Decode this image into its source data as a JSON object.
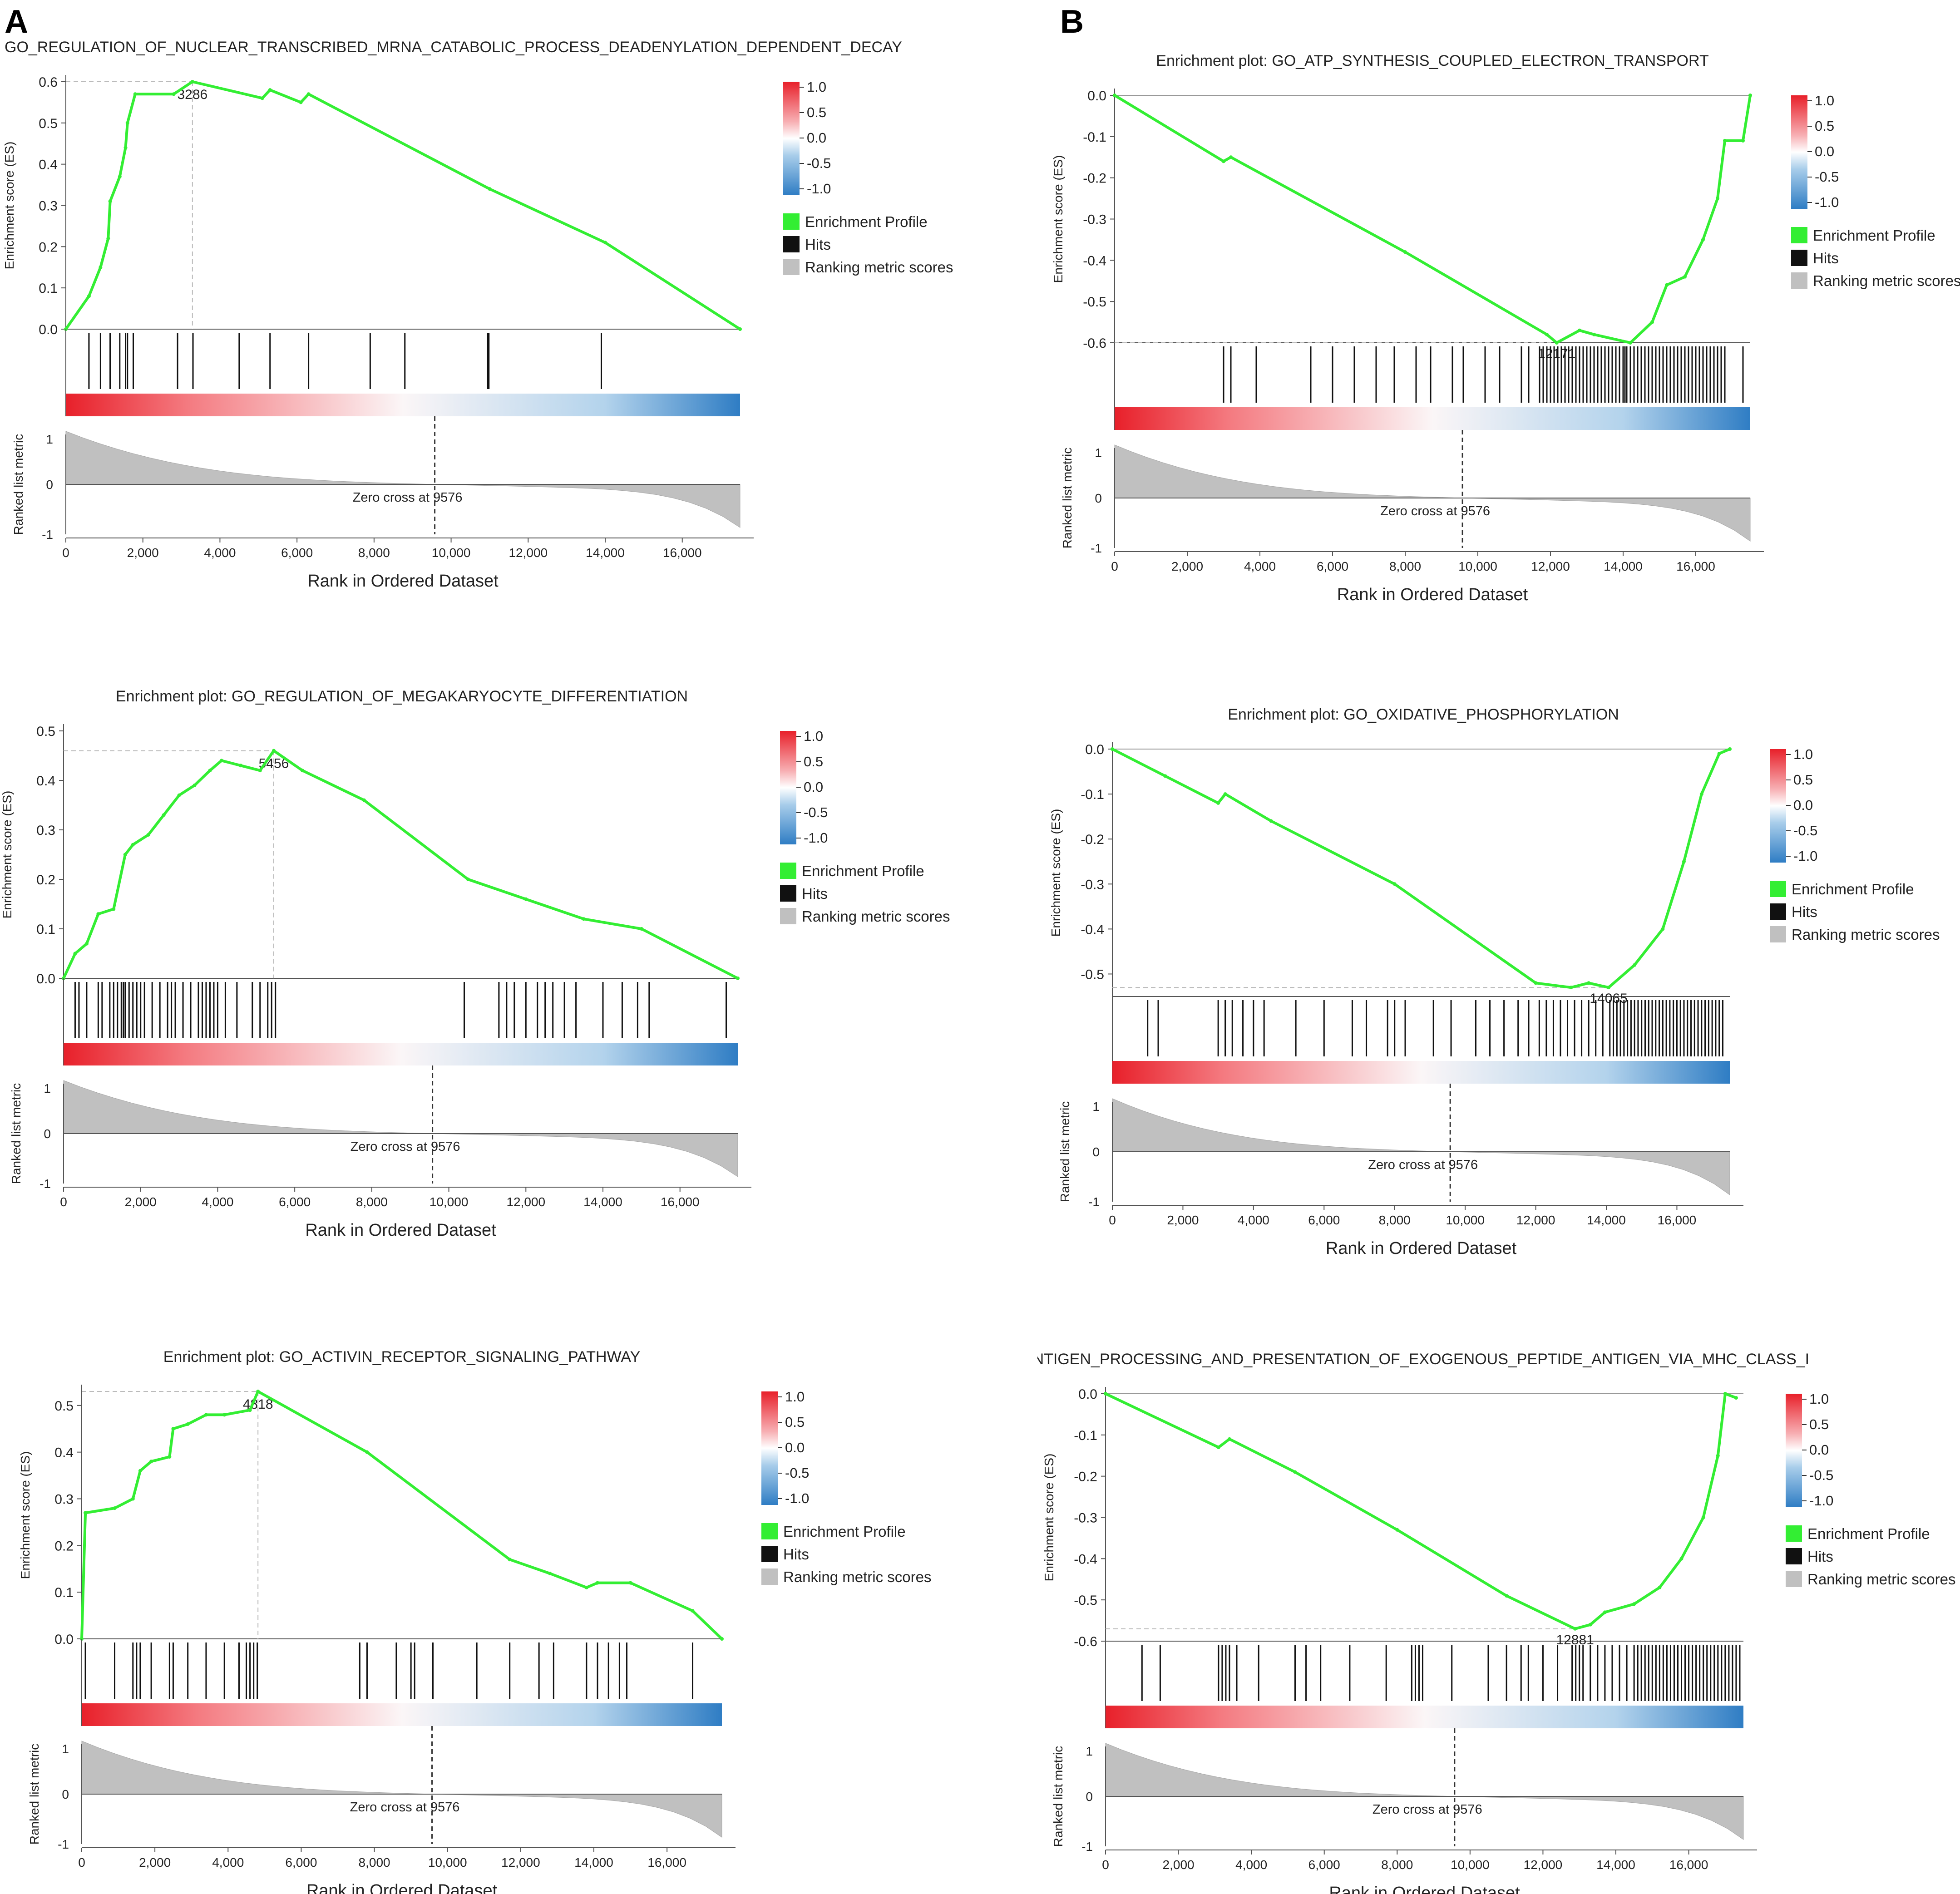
{
  "panel_labels": [
    "A",
    "B"
  ],
  "legend": {
    "items": [
      "Enrichment Profile",
      "Hits",
      "Ranking metric scores"
    ],
    "colorbar_ticks": [
      "1.0",
      "0.5",
      "0.0",
      "-0.5",
      "-1.0"
    ]
  },
  "colors": {
    "profile": "#33ee33",
    "hits": "#111111",
    "metric": "#c0c0c0",
    "positive": "#e8202a",
    "negative": "#2f7dc4",
    "axis": "#555555"
  },
  "chart_data": [
    {
      "type": "line",
      "panel": "A",
      "title": "GO_REGULATION_OF_NUCLEAR_TRANSCRIBED_MRNA_CATABOLIC_PROCESS_DEADENYLATION_DEPENDENT_DECAY",
      "ylabel": "Enrichment score (ES)",
      "xlabel": "Rank in Ordered Dataset",
      "metric_ylabel": "Ranked list metric",
      "zero_cross_label": "Zero cross at 9576",
      "zero_cross": 9576,
      "n_genes": 17500,
      "ylim": [
        0,
        0.6
      ],
      "yticks": [
        "0.0",
        "0.1",
        "0.2",
        "0.3",
        "0.4",
        "0.5",
        "0.6"
      ],
      "xticks": [
        "0",
        "2,000",
        "4,000",
        "6,000",
        "8,000",
        "10,000",
        "12,000",
        "14,000",
        "16,000"
      ],
      "metric_yticks": [
        "1",
        "0",
        "-1"
      ],
      "peak_label": "3286",
      "peak_rank": 3286,
      "peak_es": 0.6,
      "profile": [
        [
          0,
          0
        ],
        [
          600,
          0.08
        ],
        [
          900,
          0.15
        ],
        [
          1100,
          0.22
        ],
        [
          1150,
          0.31
        ],
        [
          1400,
          0.37
        ],
        [
          1550,
          0.44
        ],
        [
          1600,
          0.5
        ],
        [
          1800,
          0.57
        ],
        [
          2800,
          0.57
        ],
        [
          3286,
          0.6
        ],
        [
          5100,
          0.56
        ],
        [
          5300,
          0.58
        ],
        [
          6100,
          0.55
        ],
        [
          6300,
          0.57
        ],
        [
          11000,
          0.34
        ],
        [
          14000,
          0.21
        ],
        [
          17500,
          0
        ]
      ],
      "hits": [
        600,
        900,
        1150,
        1400,
        1550,
        1600,
        1750,
        2900,
        3300,
        4500,
        5300,
        6300,
        7900,
        8800,
        10950,
        10960,
        10980,
        13900
      ]
    },
    {
      "type": "line",
      "panel": "B",
      "title": "Enrichment plot: GO_ATP_SYNTHESIS_COUPLED_ELECTRON_TRANSPORT",
      "ylabel": "Enrichment score (ES)",
      "xlabel": "Rank in Ordered Dataset",
      "metric_ylabel": "Ranked list metric",
      "zero_cross_label": "Zero cross at 9576",
      "zero_cross": 9576,
      "n_genes": 17500,
      "ylim": [
        -0.6,
        0
      ],
      "yticks": [
        "0.0",
        "-0.1",
        "-0.2",
        "-0.3",
        "-0.4",
        "-0.5",
        "-0.6"
      ],
      "xticks": [
        "0",
        "2,000",
        "4,000",
        "6,000",
        "8,000",
        "10,000",
        "12,000",
        "14,000",
        "16,000"
      ],
      "metric_yticks": [
        "1",
        "0",
        "-1"
      ],
      "peak_label": "12171",
      "peak_rank": 12171,
      "peak_es": -0.6,
      "profile": [
        [
          0,
          0
        ],
        [
          3000,
          -0.16
        ],
        [
          3200,
          -0.15
        ],
        [
          8000,
          -0.38
        ],
        [
          11900,
          -0.58
        ],
        [
          12171,
          -0.6
        ],
        [
          12800,
          -0.57
        ],
        [
          13200,
          -0.58
        ],
        [
          14200,
          -0.6
        ],
        [
          14800,
          -0.55
        ],
        [
          15200,
          -0.46
        ],
        [
          15700,
          -0.44
        ],
        [
          16200,
          -0.35
        ],
        [
          16600,
          -0.25
        ],
        [
          16800,
          -0.11
        ],
        [
          17300,
          -0.11
        ],
        [
          17500,
          0
        ]
      ],
      "hits": [
        3000,
        3200,
        3900,
        5400,
        6000,
        6600,
        7200,
        7700,
        8300,
        8700,
        9300,
        9600,
        10200,
        10600,
        11200,
        11400,
        11700,
        11800,
        11900,
        12000,
        12100,
        12200,
        12300,
        12400,
        12500,
        12600,
        12700,
        12800,
        12900,
        13000,
        13100,
        13200,
        13300,
        13400,
        13500,
        13600,
        13700,
        13800,
        13900,
        14000,
        14050,
        14100,
        14200,
        14300,
        14400,
        14500,
        14600,
        14700,
        14800,
        14900,
        15000,
        15100,
        15200,
        15300,
        15400,
        15500,
        15600,
        15700,
        15800,
        15900,
        16000,
        16100,
        16200,
        16300,
        16400,
        16500,
        16600,
        16700,
        16800,
        17300
      ]
    },
    {
      "type": "line",
      "panel": "A",
      "title": "Enrichment plot: GO_REGULATION_OF_MEGAKARYOCYTE_DIFFERENTIATION",
      "ylabel": "Enrichment score (ES)",
      "xlabel": "Rank in Ordered Dataset",
      "metric_ylabel": "Ranked list metric",
      "zero_cross_label": "Zero cross at 9576",
      "zero_cross": 9576,
      "n_genes": 17500,
      "ylim": [
        0,
        0.5
      ],
      "yticks": [
        "0.0",
        "0.1",
        "0.2",
        "0.3",
        "0.4",
        "0.5"
      ],
      "xticks": [
        "0",
        "2,000",
        "4,000",
        "6,000",
        "8,000",
        "10,000",
        "12,000",
        "14,000",
        "16,000"
      ],
      "metric_yticks": [
        "1",
        "0",
        "-1"
      ],
      "peak_label": "5456",
      "peak_rank": 5456,
      "peak_es": 0.46,
      "profile": [
        [
          0,
          0
        ],
        [
          300,
          0.05
        ],
        [
          600,
          0.07
        ],
        [
          900,
          0.13
        ],
        [
          1300,
          0.14
        ],
        [
          1600,
          0.25
        ],
        [
          1800,
          0.27
        ],
        [
          2200,
          0.29
        ],
        [
          2600,
          0.33
        ],
        [
          3000,
          0.37
        ],
        [
          3400,
          0.39
        ],
        [
          3800,
          0.42
        ],
        [
          4100,
          0.44
        ],
        [
          4600,
          0.43
        ],
        [
          5100,
          0.42
        ],
        [
          5456,
          0.46
        ],
        [
          6200,
          0.42
        ],
        [
          7800,
          0.36
        ],
        [
          10500,
          0.2
        ],
        [
          12000,
          0.16
        ],
        [
          13500,
          0.12
        ],
        [
          15000,
          0.1
        ],
        [
          17500,
          0
        ]
      ],
      "hits": [
        300,
        400,
        600,
        900,
        1000,
        1200,
        1300,
        1400,
        1500,
        1550,
        1600,
        1700,
        1800,
        1900,
        2000,
        2100,
        2300,
        2500,
        2700,
        2800,
        2900,
        3100,
        3300,
        3500,
        3600,
        3700,
        3800,
        3900,
        4000,
        4200,
        4500,
        4900,
        5100,
        5300,
        5400,
        5500,
        10400,
        11300,
        11500,
        11700,
        12000,
        12300,
        12500,
        12700,
        13000,
        13300,
        14000,
        14500,
        14900,
        15200,
        17200
      ]
    },
    {
      "type": "line",
      "panel": "B",
      "title": "Enrichment plot: GO_OXIDATIVE_PHOSPHORYLATION",
      "ylabel": "Enrichment score (ES)",
      "xlabel": "Rank in Ordered Dataset",
      "metric_ylabel": "Ranked list metric",
      "zero_cross_label": "Zero cross at 9576",
      "zero_cross": 9576,
      "n_genes": 17500,
      "ylim": [
        -0.55,
        0
      ],
      "yticks": [
        "0.0",
        "-0.1",
        "-0.2",
        "-0.3",
        "-0.4",
        "-0.5"
      ],
      "xticks": [
        "0",
        "2,000",
        "4,000",
        "6,000",
        "8,000",
        "10,000",
        "12,000",
        "14,000",
        "16,000"
      ],
      "metric_yticks": [
        "1",
        "0",
        "-1"
      ],
      "peak_label": "14065",
      "peak_rank": 14065,
      "peak_es": -0.53,
      "profile": [
        [
          0,
          0
        ],
        [
          1500,
          -0.06
        ],
        [
          3000,
          -0.12
        ],
        [
          3200,
          -0.1
        ],
        [
          4500,
          -0.16
        ],
        [
          8000,
          -0.3
        ],
        [
          12000,
          -0.52
        ],
        [
          13000,
          -0.53
        ],
        [
          13500,
          -0.52
        ],
        [
          14065,
          -0.53
        ],
        [
          14800,
          -0.48
        ],
        [
          15600,
          -0.4
        ],
        [
          16200,
          -0.25
        ],
        [
          16700,
          -0.1
        ],
        [
          17200,
          -0.01
        ],
        [
          17500,
          0
        ]
      ],
      "hits": [
        1000,
        1300,
        3000,
        3200,
        3400,
        3700,
        4000,
        4300,
        5200,
        6000,
        6800,
        7200,
        7800,
        8000,
        8300,
        9100,
        9600,
        10300,
        10700,
        11100,
        11500,
        11800,
        12100,
        12300,
        12500,
        12700,
        12900,
        13100,
        13300,
        13500,
        13700,
        13900,
        14100,
        14200,
        14300,
        14400,
        14500,
        14600,
        14700,
        14800,
        14900,
        15000,
        15100,
        15200,
        15300,
        15400,
        15500,
        15600,
        15700,
        15800,
        15900,
        16000,
        16100,
        16200,
        16300,
        16400,
        16500,
        16600,
        16700,
        16800,
        16900,
        17000,
        17100,
        17200,
        17300
      ]
    },
    {
      "type": "line",
      "panel": "A",
      "title": "Enrichment plot: GO_ACTIVIN_RECEPTOR_SIGNALING_PATHWAY",
      "ylabel": "Enrichment score (ES)",
      "xlabel": "Rank in Ordered Dataset",
      "metric_ylabel": "Ranked list metric",
      "zero_cross_label": "Zero cross at 9576",
      "zero_cross": 9576,
      "n_genes": 17500,
      "ylim": [
        0,
        0.53
      ],
      "yticks": [
        "0.0",
        "0.1",
        "0.2",
        "0.3",
        "0.4",
        "0.5"
      ],
      "xticks": [
        "0",
        "2,000",
        "4,000",
        "6,000",
        "8,000",
        "10,000",
        "12,000",
        "14,000",
        "16,000"
      ],
      "metric_yticks": [
        "1",
        "0",
        "-1"
      ],
      "peak_label": "4818",
      "peak_rank": 4818,
      "peak_es": 0.53,
      "profile": [
        [
          0,
          0
        ],
        [
          100,
          0.27
        ],
        [
          900,
          0.28
        ],
        [
          1400,
          0.3
        ],
        [
          1600,
          0.36
        ],
        [
          1900,
          0.38
        ],
        [
          2400,
          0.39
        ],
        [
          2500,
          0.45
        ],
        [
          2900,
          0.46
        ],
        [
          3400,
          0.48
        ],
        [
          3900,
          0.48
        ],
        [
          4600,
          0.49
        ],
        [
          4818,
          0.53
        ],
        [
          7800,
          0.4
        ],
        [
          11700,
          0.17
        ],
        [
          12800,
          0.14
        ],
        [
          13800,
          0.11
        ],
        [
          14100,
          0.12
        ],
        [
          15000,
          0.12
        ],
        [
          16700,
          0.06
        ],
        [
          17500,
          0
        ]
      ],
      "hits": [
        100,
        900,
        1400,
        1500,
        1600,
        1900,
        2400,
        2500,
        2900,
        3400,
        3900,
        4300,
        4500,
        4600,
        4700,
        4800,
        7600,
        7800,
        8600,
        9000,
        9100,
        9600,
        10800,
        11700,
        12500,
        12900,
        13800,
        14100,
        14400,
        14700,
        14900,
        16700
      ]
    },
    {
      "type": "line",
      "panel": "B",
      "title": "Enrichment plot: GO_ANTIGEN_PROCESSING_AND_PRESENTATION_OF_EXOGENOUS_PEPTIDE_ANTIGEN_VIA_MHC_CLASS_I",
      "ylabel": "Enrichment score (ES)",
      "xlabel": "Rank in Ordered Dataset",
      "metric_ylabel": "Ranked list metric",
      "zero_cross_label": "Zero cross at 9576",
      "zero_cross": 9576,
      "n_genes": 17500,
      "ylim": [
        -0.6,
        0
      ],
      "yticks": [
        "0.0",
        "-0.1",
        "-0.2",
        "-0.3",
        "-0.4",
        "-0.5",
        "-0.6"
      ],
      "xticks": [
        "0",
        "2,000",
        "4,000",
        "6,000",
        "8,000",
        "10,000",
        "12,000",
        "14,000",
        "16,000"
      ],
      "metric_yticks": [
        "1",
        "0",
        "-1"
      ],
      "peak_label": "12881",
      "peak_rank": 12881,
      "peak_es": -0.57,
      "profile": [
        [
          0,
          0
        ],
        [
          3100,
          -0.13
        ],
        [
          3400,
          -0.11
        ],
        [
          5200,
          -0.19
        ],
        [
          8000,
          -0.33
        ],
        [
          11000,
          -0.49
        ],
        [
          12881,
          -0.57
        ],
        [
          13300,
          -0.56
        ],
        [
          13700,
          -0.53
        ],
        [
          14500,
          -0.51
        ],
        [
          15200,
          -0.47
        ],
        [
          15800,
          -0.4
        ],
        [
          16400,
          -0.3
        ],
        [
          16800,
          -0.15
        ],
        [
          17000,
          0
        ],
        [
          17300,
          -0.01
        ]
      ],
      "hits": [
        1000,
        1500,
        3100,
        3200,
        3300,
        3400,
        3600,
        4200,
        5200,
        5500,
        5900,
        6700,
        7700,
        8400,
        8500,
        8600,
        8700,
        9500,
        10500,
        11000,
        11400,
        11600,
        12000,
        12400,
        12800,
        12900,
        13000,
        13100,
        13300,
        13500,
        13700,
        13900,
        14100,
        14300,
        14500,
        14600,
        14700,
        14800,
        14900,
        15000,
        15100,
        15200,
        15300,
        15400,
        15500,
        15600,
        15700,
        15800,
        15900,
        16000,
        16100,
        16200,
        16300,
        16400,
        16500,
        16600,
        16700,
        16800,
        16900,
        17000,
        17100,
        17200,
        17300,
        17400
      ]
    }
  ]
}
